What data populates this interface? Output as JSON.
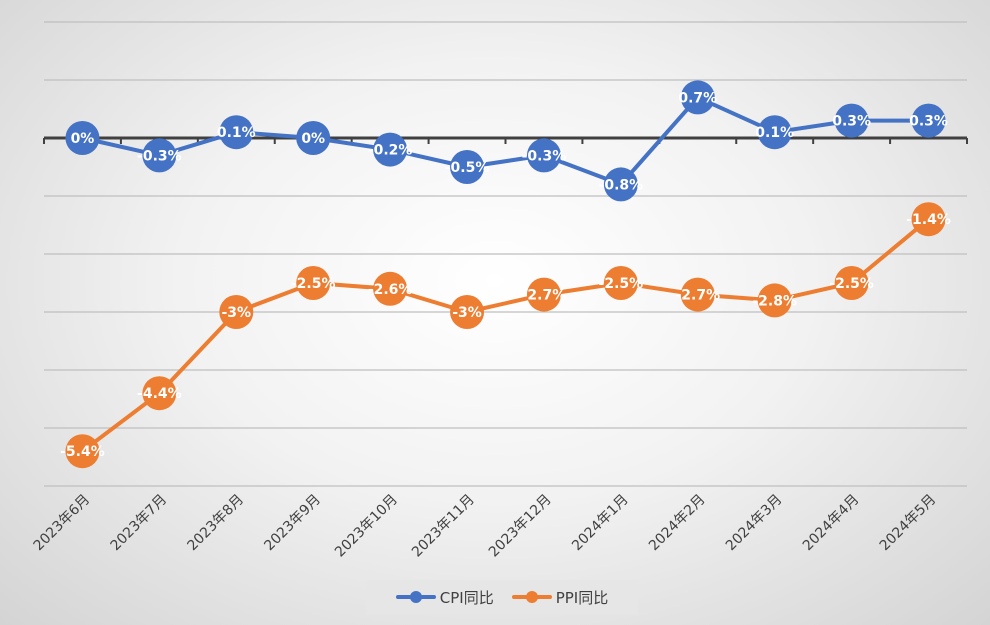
{
  "chart_data": {
    "type": "line",
    "categories": [
      "2023年6月",
      "2023年7月",
      "2023年8月",
      "2023年9月",
      "2023年10月",
      "2023年11月",
      "2023年12月",
      "2024年1月",
      "2024年2月",
      "2024年3月",
      "2024年4月",
      "2024年5月"
    ],
    "series": [
      {
        "name": "CPI同比",
        "color": "#4472c4",
        "values": [
          0,
          -0.3,
          0.1,
          0,
          -0.2,
          -0.5,
          -0.3,
          -0.8,
          0.7,
          0.1,
          0.3,
          0.3
        ],
        "labels": [
          "0%",
          "-0.3%",
          "0.1%",
          "0%",
          "-0.2%",
          "-0.5%",
          "-0.3%",
          "-0.8%",
          "0.7%",
          "0.1%",
          "0.3%",
          "0.3%"
        ]
      },
      {
        "name": "PPI同比",
        "color": "#ed7d31",
        "values": [
          -5.4,
          -4.4,
          -3,
          -2.5,
          -2.6,
          -3,
          -2.7,
          -2.5,
          -2.7,
          -2.8,
          -2.5,
          -1.4
        ],
        "labels": [
          "-5.4%",
          "-4.4%",
          "-3%",
          "-2.5%",
          "-2.6%",
          "-3%",
          "-2.7%",
          "-2.5%",
          "-2.7%",
          "-2.8%",
          "-2.5%",
          "-1.4%"
        ]
      }
    ],
    "ylim": [
      -6,
      2
    ],
    "y_major_unit": 1,
    "grid": true,
    "y_tick_labels_shown": false,
    "legend_position": "bottom"
  }
}
